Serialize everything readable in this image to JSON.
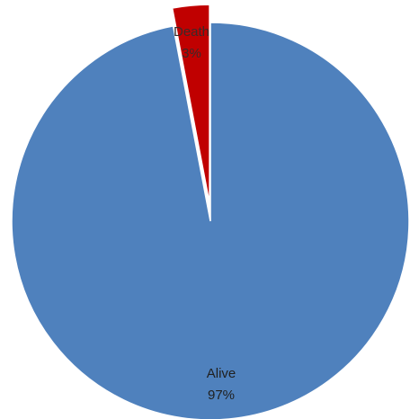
{
  "chart_data": {
    "type": "pie",
    "title": "",
    "slices": [
      {
        "label": "Alive",
        "value": 97,
        "value_label": "97%",
        "color": "#4f81bd"
      },
      {
        "label": "Death",
        "value": 3,
        "value_label": "3%",
        "color": "#c00000"
      }
    ],
    "start_angle_deg": 0,
    "exploded_slice": "Death",
    "legend": "none"
  }
}
